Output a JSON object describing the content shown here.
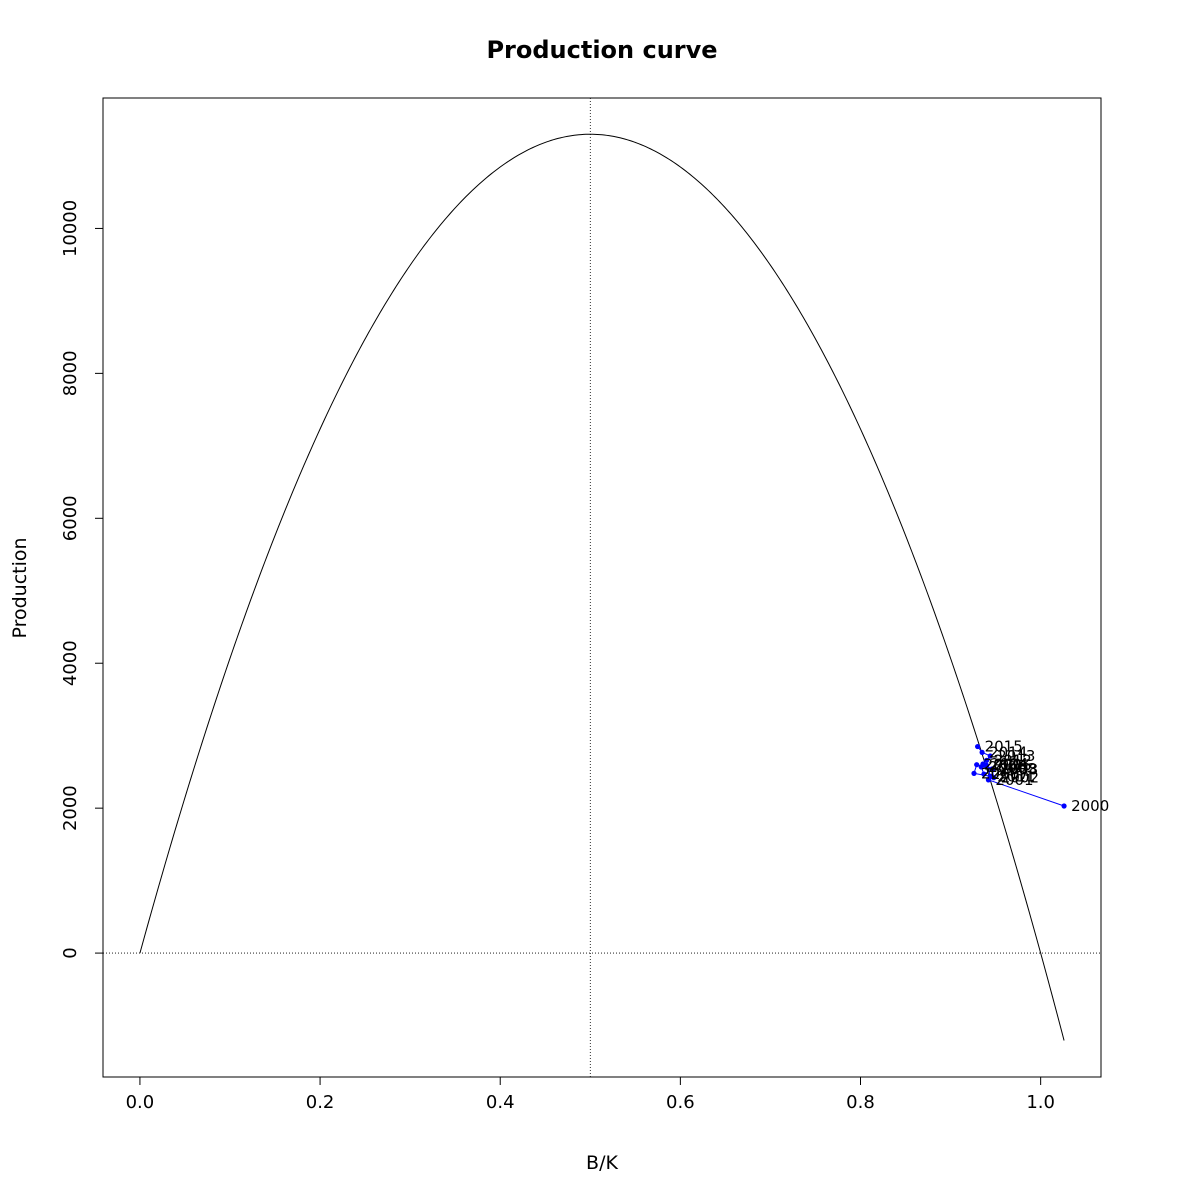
{
  "chart_data": {
    "type": "line",
    "title": "Production curve",
    "xlabel": "B/K",
    "ylabel": "Production",
    "xlim": [
      -0.041,
      1.067
    ],
    "ylim": [
      -1710,
      11800
    ],
    "x_ticks": [
      "0.0",
      "0.2",
      "0.4",
      "0.6",
      "0.8",
      "1.0"
    ],
    "y_ticks": [
      "0",
      "2000",
      "4000",
      "6000",
      "8000",
      "10000"
    ],
    "grid": false,
    "reference_lines": {
      "vertical_x": 0.5,
      "horizontal_y": 0
    },
    "curve": {
      "description": "Schaefer production function P = 4 * MSY * (B/K) * (1 - B/K)",
      "msy": 11300,
      "x_range": [
        0,
        1.026
      ],
      "color": "#000000"
    },
    "trajectory": {
      "color": "#0000ff",
      "points": [
        {
          "year": "2000",
          "x": 1.026,
          "y": 2030
        },
        {
          "year": "2001",
          "x": 0.942,
          "y": 2390
        },
        {
          "year": "2002",
          "x": 0.948,
          "y": 2420
        },
        {
          "year": "2003",
          "x": 0.946,
          "y": 2540
        },
        {
          "year": "2004",
          "x": 0.936,
          "y": 2610
        },
        {
          "year": "2005",
          "x": 0.94,
          "y": 2590
        },
        {
          "year": "2006",
          "x": 0.934,
          "y": 2570
        },
        {
          "year": "2007",
          "x": 0.937,
          "y": 2470
        },
        {
          "year": "2008",
          "x": 0.947,
          "y": 2530
        },
        {
          "year": "2009",
          "x": 0.929,
          "y": 2600
        },
        {
          "year": "2010",
          "x": 0.926,
          "y": 2480
        },
        {
          "year": "2011",
          "x": 0.944,
          "y": 2440
        },
        {
          "year": "2012",
          "x": 0.94,
          "y": 2660
        },
        {
          "year": "2013",
          "x": 0.944,
          "y": 2720
        },
        {
          "year": "2014",
          "x": 0.935,
          "y": 2770
        },
        {
          "year": "2015",
          "x": 0.93,
          "y": 2850
        }
      ]
    }
  }
}
